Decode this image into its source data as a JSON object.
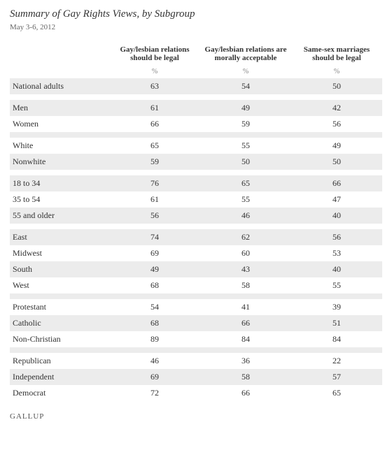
{
  "title": "Summary of Gay Rights Views, by Subgroup",
  "date": "May 3-6, 2012",
  "columns": {
    "col1": "Gay/lesbian relations should be legal",
    "col2": "Gay/lesbian relations are morally acceptable",
    "col3": "Same-sex marriages should be legal"
  },
  "pct_symbol": "%",
  "groups": [
    {
      "rows": [
        {
          "label": "National adults",
          "v1": "63",
          "v2": "54",
          "v3": "50"
        }
      ]
    },
    {
      "rows": [
        {
          "label": "Men",
          "v1": "61",
          "v2": "49",
          "v3": "42"
        },
        {
          "label": "Women",
          "v1": "66",
          "v2": "59",
          "v3": "56"
        }
      ]
    },
    {
      "rows": [
        {
          "label": "White",
          "v1": "65",
          "v2": "55",
          "v3": "49"
        },
        {
          "label": "Nonwhite",
          "v1": "59",
          "v2": "50",
          "v3": "50"
        }
      ]
    },
    {
      "rows": [
        {
          "label": "18 to 34",
          "v1": "76",
          "v2": "65",
          "v3": "66"
        },
        {
          "label": "35 to 54",
          "v1": "61",
          "v2": "55",
          "v3": "47"
        },
        {
          "label": "55 and older",
          "v1": "56",
          "v2": "46",
          "v3": "40"
        }
      ]
    },
    {
      "rows": [
        {
          "label": "East",
          "v1": "74",
          "v2": "62",
          "v3": "56"
        },
        {
          "label": "Midwest",
          "v1": "69",
          "v2": "60",
          "v3": "53"
        },
        {
          "label": "South",
          "v1": "49",
          "v2": "43",
          "v3": "40"
        },
        {
          "label": "West",
          "v1": "68",
          "v2": "58",
          "v3": "55"
        }
      ]
    },
    {
      "rows": [
        {
          "label": "Protestant",
          "v1": "54",
          "v2": "41",
          "v3": "39"
        },
        {
          "label": "Catholic",
          "v1": "68",
          "v2": "66",
          "v3": "51"
        },
        {
          "label": "Non-Christian",
          "v1": "89",
          "v2": "84",
          "v3": "84"
        }
      ]
    },
    {
      "rows": [
        {
          "label": "Republican",
          "v1": "46",
          "v2": "36",
          "v3": "22"
        },
        {
          "label": "Independent",
          "v1": "69",
          "v2": "58",
          "v3": "57"
        },
        {
          "label": "Democrat",
          "v1": "72",
          "v2": "66",
          "v3": "65"
        }
      ]
    }
  ],
  "footer": "GALLUP",
  "styling": {
    "shade_color": "#ececec",
    "background_color": "#ffffff",
    "title_fontsize": 15,
    "body_fontsize": 11,
    "data_fontsize": 12,
    "title_color": "#333333",
    "date_color": "#666666",
    "pct_color": "#888888",
    "footer_color": "#555555"
  }
}
